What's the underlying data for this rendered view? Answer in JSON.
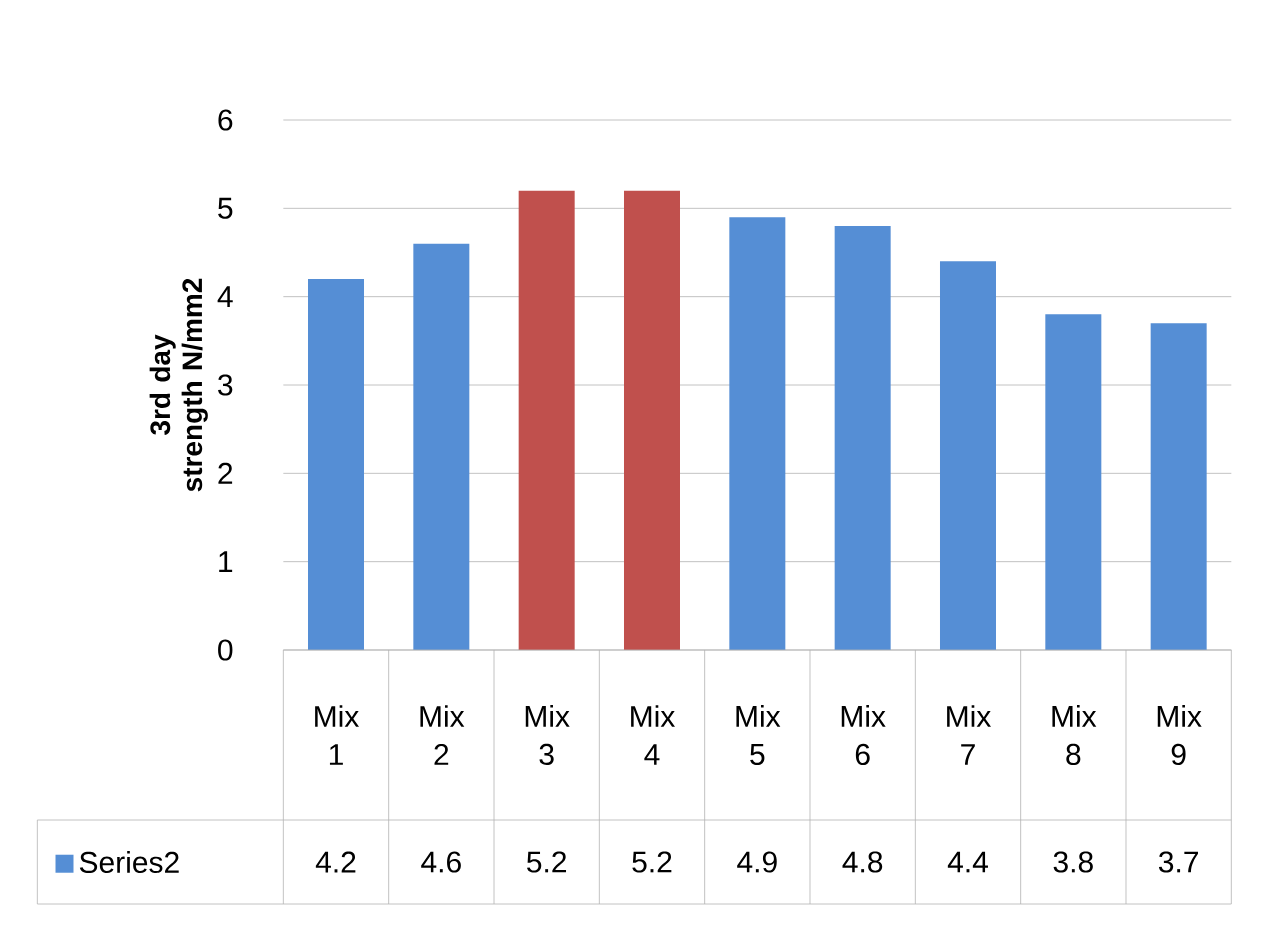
{
  "chart_data": {
    "type": "bar",
    "ylabel": "3rd  day strength N/mm2",
    "categories": [
      "Mix 1",
      "Mix 2",
      "Mix 3",
      "Mix 4",
      "Mix 5",
      "Mix 6",
      "Mix 7",
      "Mix 8",
      "Mix 9"
    ],
    "series": [
      {
        "name": "Series2",
        "color": "#558ed5",
        "colors": [
          "#558ed5",
          "#558ed5",
          "#c0504d",
          "#c0504d",
          "#558ed5",
          "#558ed5",
          "#558ed5",
          "#558ed5",
          "#558ed5"
        ],
        "values": [
          4.2,
          4.6,
          5.2,
          5.2,
          4.9,
          4.8,
          4.4,
          3.8,
          3.7
        ]
      }
    ],
    "ylim": [
      0,
      6
    ],
    "yticks": [
      0,
      1,
      2,
      3,
      4,
      5,
      6
    ],
    "grid": "y",
    "legend": "bottom",
    "data_labels": true
  }
}
